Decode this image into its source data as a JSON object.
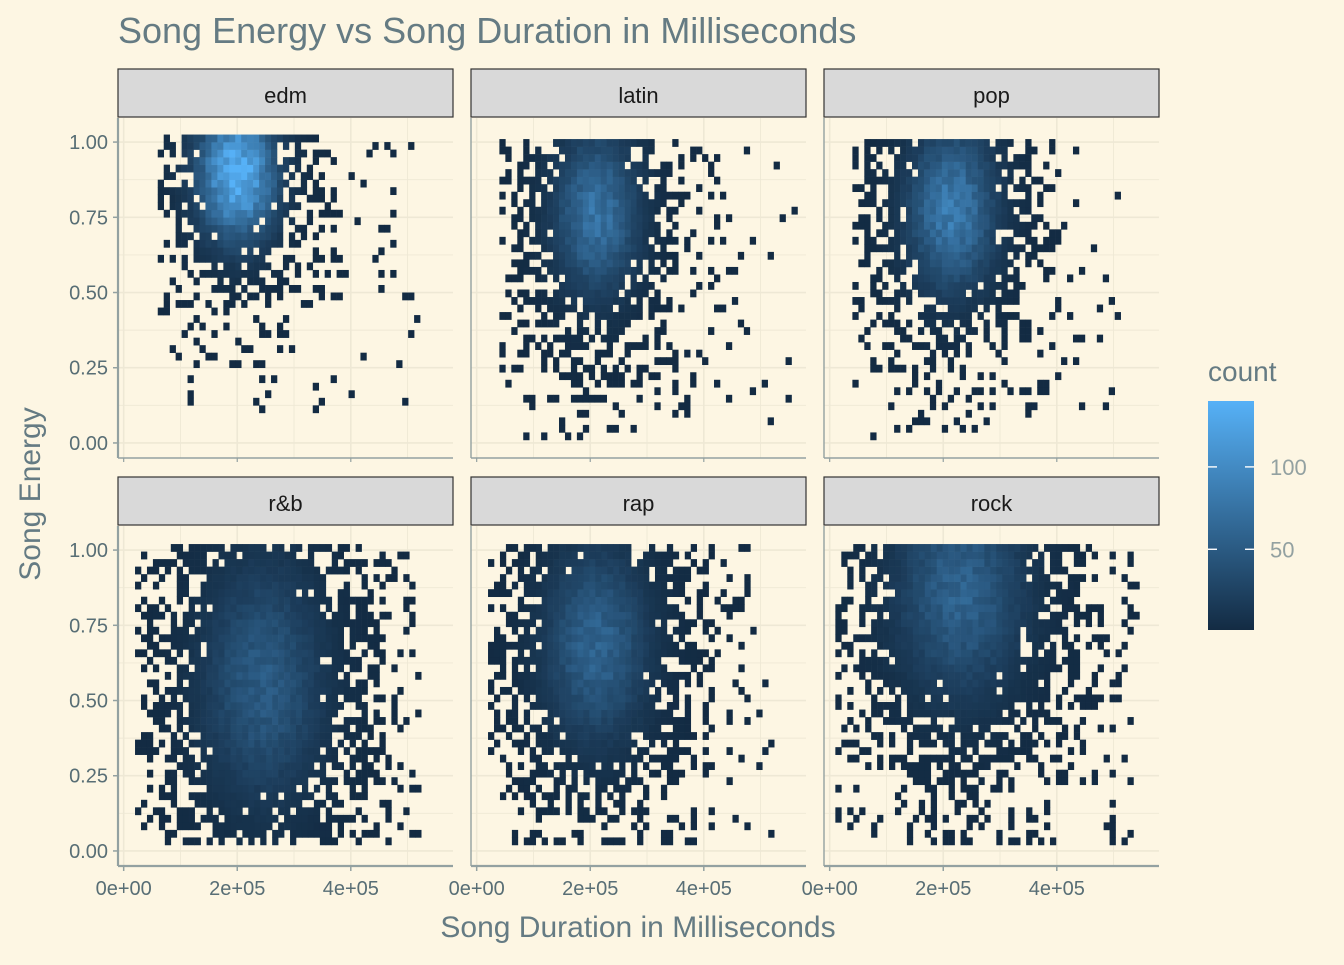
{
  "chart_data": {
    "type": "heatmap",
    "title": "Song Energy vs Song Duration in Milliseconds",
    "xlabel": "Song Duration in Milliseconds",
    "ylabel": "Song Energy",
    "xlim": [
      -10000,
      580000
    ],
    "ylim": [
      -0.05,
      1.08
    ],
    "x_ticks": [
      0,
      200000,
      400000
    ],
    "x_tick_labels": [
      "0e+00",
      "2e+05",
      "4e+05"
    ],
    "y_ticks": [
      0,
      0.25,
      0.5,
      0.75,
      1.0
    ],
    "y_tick_labels": [
      "0.00",
      "0.25",
      "0.50",
      "0.75",
      "1.00"
    ],
    "grid": true,
    "bins": {
      "x_width": 10500,
      "y_height": 0.025
    },
    "legend": {
      "title": "count",
      "position": "right",
      "ticks": [
        50,
        100
      ],
      "tick_labels": [
        "50",
        "100"
      ],
      "range": [
        1,
        140
      ],
      "color_low": "#132b43",
      "color_high": "#56b1f7"
    },
    "facets": [
      {
        "name": "edm",
        "row": 0,
        "col": 0,
        "peak_count": 140,
        "x_range": [
          60000,
          520000
        ],
        "y_range": [
          0.1,
          1.0
        ],
        "density_center": [
          195000,
          0.88
        ],
        "density_spread": [
          45000,
          0.14
        ]
      },
      {
        "name": "latin",
        "row": 0,
        "col": 1,
        "peak_count": 75,
        "x_range": [
          40000,
          560000
        ],
        "y_range": [
          0.01,
          1.0
        ],
        "density_center": [
          205000,
          0.75
        ],
        "density_spread": [
          48000,
          0.17
        ]
      },
      {
        "name": "pop",
        "row": 0,
        "col": 2,
        "peak_count": 85,
        "x_range": [
          40000,
          520000
        ],
        "y_range": [
          0.01,
          1.0
        ],
        "density_center": [
          210000,
          0.76
        ],
        "density_spread": [
          50000,
          0.17
        ]
      },
      {
        "name": "r&b",
        "row": 1,
        "col": 0,
        "peak_count": 50,
        "x_range": [
          20000,
          520000
        ],
        "y_range": [
          0.02,
          1.0
        ],
        "density_center": [
          240000,
          0.55
        ],
        "density_spread": [
          68000,
          0.25
        ]
      },
      {
        "name": "rap",
        "row": 1,
        "col": 1,
        "peak_count": 60,
        "x_range": [
          20000,
          520000
        ],
        "y_range": [
          0.02,
          1.0
        ],
        "density_center": [
          205000,
          0.67
        ],
        "density_spread": [
          58000,
          0.2
        ]
      },
      {
        "name": "rock",
        "row": 1,
        "col": 2,
        "peak_count": 58,
        "x_range": [
          10000,
          540000
        ],
        "y_range": [
          0.02,
          1.0
        ],
        "density_center": [
          225000,
          0.85
        ],
        "density_spread": [
          72000,
          0.22
        ]
      }
    ]
  }
}
